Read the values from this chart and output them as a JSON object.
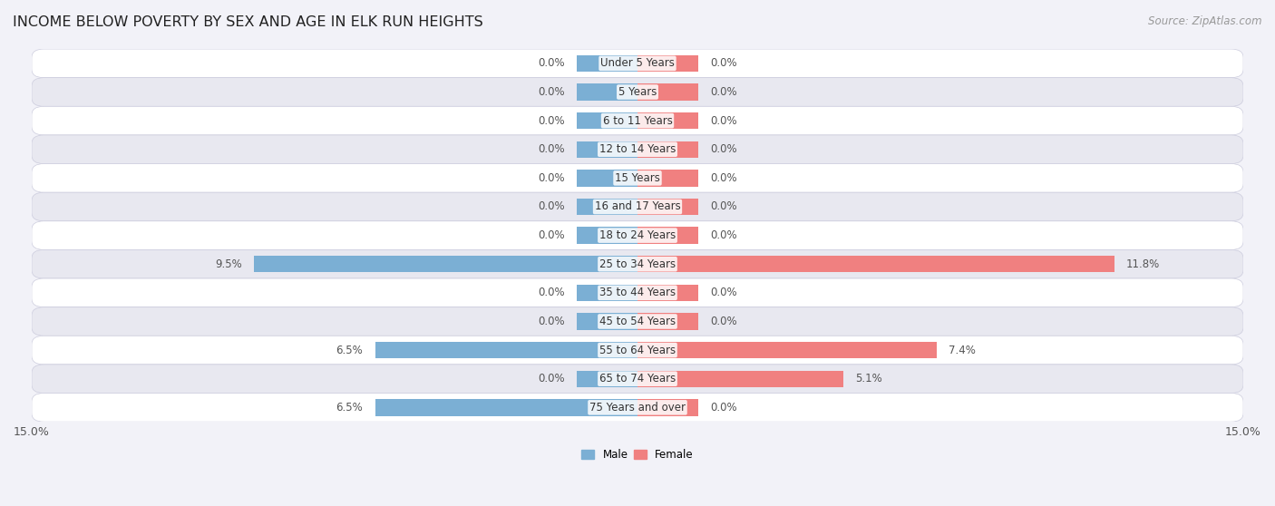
{
  "title": "INCOME BELOW POVERTY BY SEX AND AGE IN ELK RUN HEIGHTS",
  "source": "Source: ZipAtlas.com",
  "categories": [
    "Under 5 Years",
    "5 Years",
    "6 to 11 Years",
    "12 to 14 Years",
    "15 Years",
    "16 and 17 Years",
    "18 to 24 Years",
    "25 to 34 Years",
    "35 to 44 Years",
    "45 to 54 Years",
    "55 to 64 Years",
    "65 to 74 Years",
    "75 Years and over"
  ],
  "male": [
    0.0,
    0.0,
    0.0,
    0.0,
    0.0,
    0.0,
    0.0,
    9.5,
    0.0,
    0.0,
    6.5,
    0.0,
    6.5
  ],
  "female": [
    0.0,
    0.0,
    0.0,
    0.0,
    0.0,
    0.0,
    0.0,
    11.8,
    0.0,
    0.0,
    7.4,
    5.1,
    0.0
  ],
  "male_color": "#7bafd4",
  "female_color": "#f08080",
  "male_label": "Male",
  "female_label": "Female",
  "xlim": 15.0,
  "bar_height": 0.58,
  "stub_size": 1.5,
  "bg_color": "#f2f2f8",
  "row_color_odd": "#ffffff",
  "row_color_even": "#e8e8f0",
  "title_fontsize": 11.5,
  "source_fontsize": 8.5,
  "label_fontsize": 8.5,
  "tick_fontsize": 9,
  "category_fontsize": 8.5
}
